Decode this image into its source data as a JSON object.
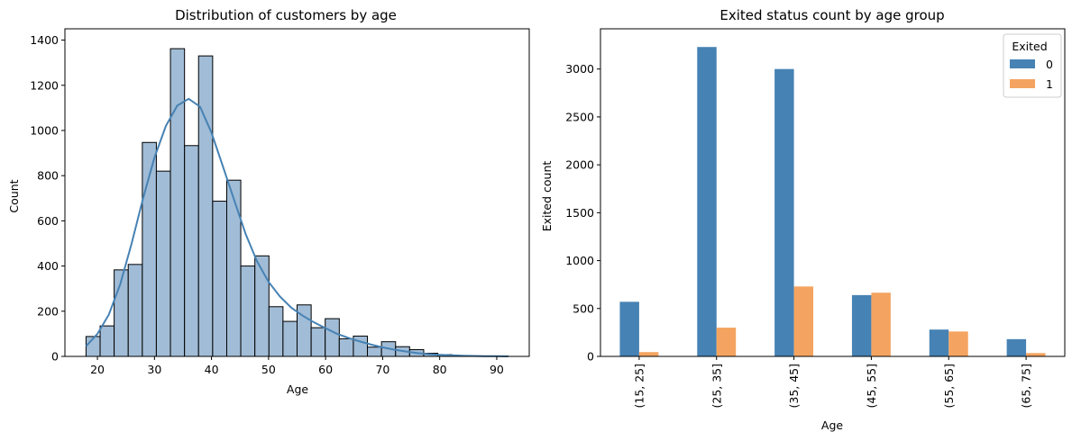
{
  "chart_data": [
    {
      "type": "bar",
      "subtype": "histogram-with-kde",
      "title": "Distribution of customers by age",
      "xlabel": "Age",
      "ylabel": "Count",
      "xlim": [
        14.3,
        95.7
      ],
      "ylim": [
        0,
        1450
      ],
      "xticks": [
        20,
        30,
        40,
        50,
        60,
        70,
        80,
        90
      ],
      "yticks": [
        0,
        200,
        400,
        600,
        800,
        1000,
        1200,
        1400
      ],
      "bins": [
        {
          "x0": 18.0,
          "x1": 20.47,
          "count": 88
        },
        {
          "x0": 20.47,
          "x1": 22.93,
          "count": 135
        },
        {
          "x0": 22.93,
          "x1": 25.4,
          "count": 383
        },
        {
          "x0": 25.4,
          "x1": 27.87,
          "count": 407
        },
        {
          "x0": 27.87,
          "x1": 30.33,
          "count": 947
        },
        {
          "x0": 30.33,
          "x1": 32.8,
          "count": 820
        },
        {
          "x0": 32.8,
          "x1": 35.27,
          "count": 1362
        },
        {
          "x0": 35.27,
          "x1": 37.73,
          "count": 933
        },
        {
          "x0": 37.73,
          "x1": 40.2,
          "count": 1330
        },
        {
          "x0": 40.2,
          "x1": 42.67,
          "count": 687
        },
        {
          "x0": 42.67,
          "x1": 45.13,
          "count": 780
        },
        {
          "x0": 45.13,
          "x1": 47.6,
          "count": 400
        },
        {
          "x0": 47.6,
          "x1": 50.07,
          "count": 445
        },
        {
          "x0": 50.07,
          "x1": 52.53,
          "count": 220
        },
        {
          "x0": 52.53,
          "x1": 55.0,
          "count": 155
        },
        {
          "x0": 55.0,
          "x1": 57.47,
          "count": 228
        },
        {
          "x0": 57.47,
          "x1": 59.93,
          "count": 127
        },
        {
          "x0": 59.93,
          "x1": 62.4,
          "count": 167
        },
        {
          "x0": 62.4,
          "x1": 64.87,
          "count": 78
        },
        {
          "x0": 64.87,
          "x1": 67.33,
          "count": 90
        },
        {
          "x0": 67.33,
          "x1": 69.8,
          "count": 41
        },
        {
          "x0": 69.8,
          "x1": 72.27,
          "count": 65
        },
        {
          "x0": 72.27,
          "x1": 74.73,
          "count": 43
        },
        {
          "x0": 74.73,
          "x1": 77.2,
          "count": 30
        },
        {
          "x0": 77.2,
          "x1": 79.67,
          "count": 14
        },
        {
          "x0": 79.67,
          "x1": 82.13,
          "count": 8
        },
        {
          "x0": 82.13,
          "x1": 84.6,
          "count": 3
        },
        {
          "x0": 84.6,
          "x1": 87.07,
          "count": 2
        },
        {
          "x0": 87.07,
          "x1": 89.53,
          "count": 0
        },
        {
          "x0": 89.53,
          "x1": 92.0,
          "count": 2
        }
      ],
      "kde": {
        "x": [
          18,
          20,
          22,
          24,
          26,
          28,
          30,
          32,
          34,
          36,
          38,
          40,
          42,
          44,
          46,
          48,
          50,
          52,
          54,
          56,
          58,
          60,
          62,
          64,
          66,
          68,
          70,
          72,
          74,
          76,
          78,
          80,
          82,
          84,
          86,
          88,
          90,
          92
        ],
        "y": [
          45,
          100,
          185,
          320,
          500,
          700,
          880,
          1020,
          1110,
          1140,
          1105,
          990,
          840,
          690,
          540,
          420,
          330,
          265,
          215,
          180,
          150,
          125,
          100,
          82,
          66,
          52,
          40,
          30,
          22,
          15,
          10,
          7,
          5,
          3,
          2,
          1,
          1,
          0
        ]
      },
      "colors": {
        "bar": "#a1bcd6",
        "edge": "#000000",
        "kde": "#4682b4"
      }
    },
    {
      "type": "bar",
      "title": "Exited status count by age group",
      "xlabel": "Age",
      "ylabel": "Exited count",
      "categories": [
        "(15, 25]",
        "(25, 35]",
        "(35, 45]",
        "(45, 55]",
        "(55, 65]",
        "(65, 75]"
      ],
      "ylim": [
        0,
        3420
      ],
      "yticks": [
        0,
        500,
        1000,
        1500,
        2000,
        2500,
        3000
      ],
      "legend": {
        "title": "Exited",
        "placement": "top-right"
      },
      "series": [
        {
          "name": "0",
          "color": "#4682b4",
          "values": [
            570,
            3230,
            3000,
            640,
            280,
            180
          ]
        },
        {
          "name": "1",
          "color": "#f4a460",
          "values": [
            45,
            300,
            730,
            665,
            260,
            35
          ]
        }
      ]
    }
  ]
}
